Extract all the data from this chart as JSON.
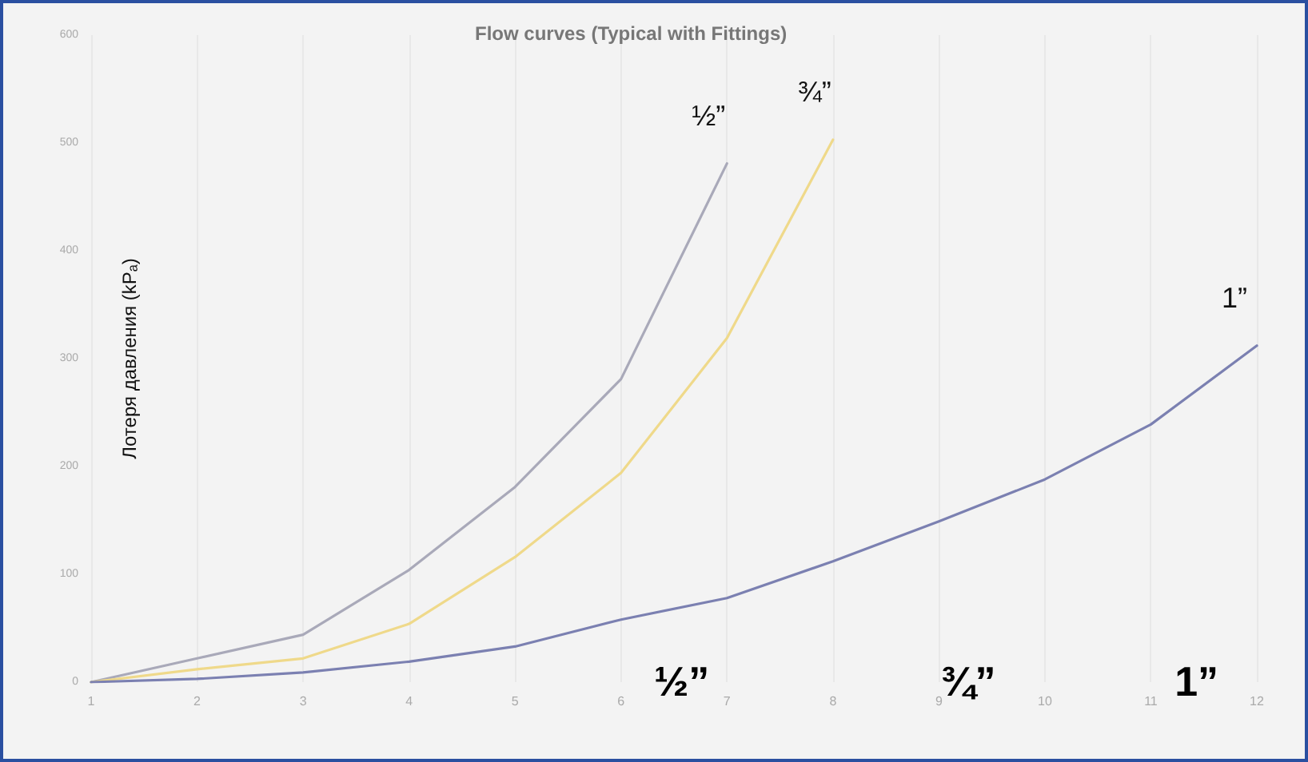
{
  "chart_data": {
    "type": "line",
    "title": "Flow curves (Typical with Fittings)",
    "ylabel": "Лотеря давления (kPₐ)",
    "x": [
      1,
      2,
      3,
      4,
      5,
      6,
      7,
      8,
      9,
      10,
      11,
      12
    ],
    "series": [
      {
        "name": "½”",
        "color": "#a9a9b9",
        "values": [
          0,
          22,
          44,
          104,
          181,
          281,
          481,
          null,
          null,
          null,
          null,
          null
        ]
      },
      {
        "name": "¾”",
        "color": "#efd98a",
        "values": [
          0,
          12,
          22,
          54,
          116,
          194,
          319,
          503,
          null,
          null,
          null,
          null
        ]
      },
      {
        "name": "1”",
        "color": "#7b80b1",
        "values": [
          0,
          3,
          9,
          19,
          33,
          58,
          78,
          112,
          149,
          188,
          239,
          312
        ]
      }
    ],
    "annotations": [
      "½”",
      "¾”",
      "1”"
    ],
    "xlim": [
      1,
      12
    ],
    "xticks": [
      1,
      2,
      3,
      4,
      5,
      6,
      7,
      8,
      9,
      10,
      11,
      12
    ],
    "ylim": [
      0,
      600
    ],
    "yticks": [
      0,
      100,
      200,
      300,
      400,
      500,
      600
    ],
    "grid": "x",
    "legend": false,
    "marker": "none",
    "line_style": "solid"
  }
}
